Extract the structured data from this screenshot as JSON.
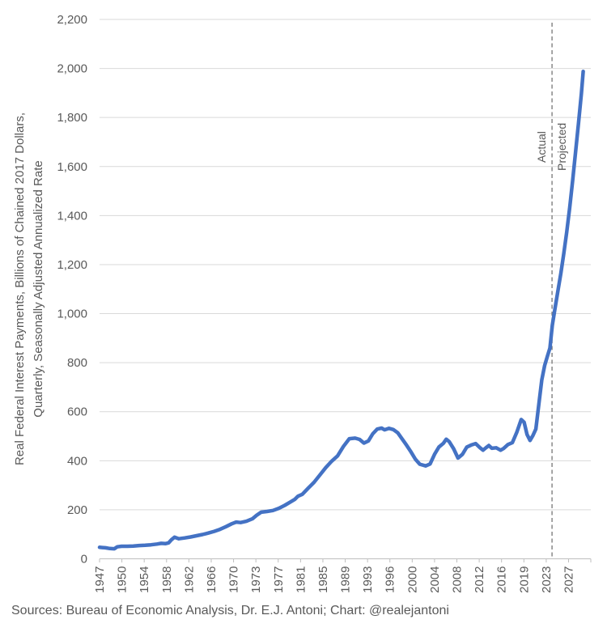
{
  "page": {
    "background": "#FFFFFF"
  },
  "y_axis_title": {
    "line1": "Real Federal Interest Payments, Billions of Chained 2017 Dollars,",
    "line2": "Quarterly, Seasonally Adjusted Annualized Rate"
  },
  "footer": {
    "source_text": "Sources: Bureau of Economic Analysis, Dr. E.J. Antoni; Chart: @realejantoni"
  },
  "colors": {
    "line": "#4472C4",
    "gridline": "#D9D9D9",
    "axis": "#BFBFBF",
    "tick_text": "#595959",
    "divider": "#7F7F7F",
    "annotation_text": "#595959"
  },
  "chart_data": {
    "type": "line",
    "title": "",
    "ylabel": "Real Federal Interest Payments, Billions of Chained 2017 Dollars, Quarterly, Seasonally Adjusted Annualized Rate",
    "xlabel": "",
    "ylim": [
      0,
      2200
    ],
    "ytick_step": 200,
    "ytick_labels": [
      "0",
      "200",
      "400",
      "600",
      "800",
      "1,000",
      "1,200",
      "1,400",
      "1,600",
      "1,800",
      "2,000",
      "2,200"
    ],
    "xtick_labels": [
      "1947",
      "1950",
      "1954",
      "1958",
      "1962",
      "1966",
      "1970",
      "1973",
      "1977",
      "1981",
      "1985",
      "1989",
      "1993",
      "1996",
      "2000",
      "2004",
      "2008",
      "2012",
      "2016",
      "2019",
      "2023",
      "2027"
    ],
    "x_domain": [
      1947,
      2030.6
    ],
    "grid": "horizontal-only",
    "legend": "none",
    "line_color": "#4472C4",
    "divider": {
      "year": 2024,
      "style": "dashed",
      "color": "#7F7F7F",
      "label_left": "Actual",
      "label_right": "Projected"
    },
    "series": [
      {
        "name": "actual",
        "points": [
          [
            1947.0,
            47
          ],
          [
            1947.5,
            46
          ],
          [
            1948.0,
            45
          ],
          [
            1948.75,
            42
          ],
          [
            1949.5,
            41
          ],
          [
            1950.0,
            49
          ],
          [
            1950.75,
            51
          ],
          [
            1951.75,
            51
          ],
          [
            1952.75,
            52
          ],
          [
            1953.75,
            54
          ],
          [
            1954.75,
            55
          ],
          [
            1955.75,
            57
          ],
          [
            1956.75,
            60
          ],
          [
            1957.5,
            63
          ],
          [
            1958.25,
            62
          ],
          [
            1958.75,
            65
          ],
          [
            1959.25,
            78
          ],
          [
            1959.75,
            88
          ],
          [
            1960.5,
            82
          ],
          [
            1961.5,
            85
          ],
          [
            1962.5,
            89
          ],
          [
            1963.5,
            94
          ],
          [
            1964.5,
            99
          ],
          [
            1965.5,
            105
          ],
          [
            1966.5,
            112
          ],
          [
            1967.5,
            120
          ],
          [
            1968.5,
            131
          ],
          [
            1969.5,
            143
          ],
          [
            1970.25,
            150
          ],
          [
            1971.0,
            148
          ],
          [
            1972.0,
            153
          ],
          [
            1973.0,
            163
          ],
          [
            1973.75,
            178
          ],
          [
            1974.5,
            190
          ],
          [
            1975.5,
            193
          ],
          [
            1976.5,
            197
          ],
          [
            1977.5,
            206
          ],
          [
            1978.5,
            218
          ],
          [
            1979.5,
            232
          ],
          [
            1980.25,
            243
          ],
          [
            1980.75,
            255
          ],
          [
            1981.5,
            263
          ],
          [
            1982.5,
            288
          ],
          [
            1983.5,
            312
          ],
          [
            1984.5,
            342
          ],
          [
            1985.5,
            372
          ],
          [
            1986.5,
            398
          ],
          [
            1987.5,
            420
          ],
          [
            1988.5,
            458
          ],
          [
            1989.5,
            490
          ],
          [
            1990.5,
            492
          ],
          [
            1991.25,
            487
          ],
          [
            1992.0,
            472
          ],
          [
            1992.75,
            481
          ],
          [
            1993.5,
            510
          ],
          [
            1994.25,
            529
          ],
          [
            1995.0,
            533
          ],
          [
            1995.5,
            526
          ],
          [
            1996.25,
            532
          ],
          [
            1997.0,
            527
          ],
          [
            1997.75,
            514
          ],
          [
            1998.5,
            489
          ],
          [
            1999.25,
            463
          ],
          [
            2000.0,
            436
          ],
          [
            2000.75,
            406
          ],
          [
            2001.5,
            386
          ],
          [
            2002.5,
            379
          ],
          [
            2003.25,
            387
          ],
          [
            2004.0,
            426
          ],
          [
            2004.75,
            456
          ],
          [
            2005.5,
            471
          ],
          [
            2006.0,
            488
          ],
          [
            2006.5,
            478
          ],
          [
            2007.25,
            449
          ],
          [
            2008.0,
            411
          ],
          [
            2008.75,
            426
          ],
          [
            2009.5,
            456
          ],
          [
            2010.25,
            464
          ],
          [
            2011.0,
            470
          ],
          [
            2011.75,
            453
          ],
          [
            2012.25,
            443
          ],
          [
            2012.75,
            453
          ],
          [
            2013.25,
            462
          ],
          [
            2013.75,
            451
          ],
          [
            2014.5,
            453
          ],
          [
            2015.25,
            443
          ],
          [
            2015.75,
            450
          ],
          [
            2016.5,
            466
          ],
          [
            2017.25,
            474
          ],
          [
            2018.0,
            516
          ],
          [
            2018.75,
            568
          ],
          [
            2019.25,
            557
          ],
          [
            2019.75,
            507
          ],
          [
            2020.25,
            483
          ],
          [
            2020.75,
            503
          ],
          [
            2021.25,
            529
          ],
          [
            2021.75,
            628
          ],
          [
            2022.25,
            729
          ],
          [
            2022.75,
            789
          ],
          [
            2023.25,
            829
          ],
          [
            2023.65,
            860
          ],
          [
            2024.05,
            952
          ]
        ]
      },
      {
        "name": "projected",
        "points": [
          [
            2024.05,
            952
          ],
          [
            2024.5,
            1020
          ],
          [
            2025.0,
            1092
          ],
          [
            2025.5,
            1165
          ],
          [
            2026.0,
            1245
          ],
          [
            2026.5,
            1332
          ],
          [
            2027.0,
            1432
          ],
          [
            2027.5,
            1541
          ],
          [
            2028.0,
            1657
          ],
          [
            2028.5,
            1777
          ],
          [
            2029.0,
            1899
          ],
          [
            2029.3,
            1988
          ]
        ]
      }
    ]
  }
}
